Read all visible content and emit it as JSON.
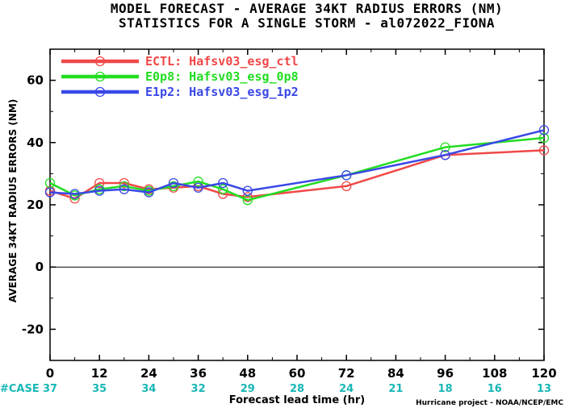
{
  "title": "MODEL FORECAST - AVERAGE 34KT RADIUS ERRORS (NM)",
  "subtitle": "STATISTICS FOR A SINGLE STORM - al072022_FIONA",
  "credit": "Hurricane project - NOAA/NCEP/EMC",
  "case_row": {
    "label": "#CASE",
    "counts": [
      "37",
      "35",
      "34",
      "32",
      "29",
      "28",
      "24",
      "21",
      "18",
      "16",
      "13"
    ]
  },
  "chart_data": {
    "type": "line",
    "xlabel": "Forecast lead time (hr)",
    "ylabel": "AVERAGE 34KT RADIUS ERRORS (NM)",
    "xlim": [
      0,
      120
    ],
    "ylim": [
      -30,
      70
    ],
    "x_ticks": [
      0,
      12,
      24,
      36,
      48,
      60,
      72,
      84,
      96,
      108,
      120
    ],
    "y_ticks": [
      -20,
      0,
      20,
      40,
      60
    ],
    "zero_line": true,
    "legend_position": "top-left",
    "series": [
      {
        "name": "ECTL: Hafsv03_esg_ctl",
        "color": "#f04848",
        "x": [
          0,
          6,
          12,
          18,
          24,
          30,
          36,
          42,
          48,
          72,
          96,
          120
        ],
        "y": [
          24.5,
          22,
          27,
          27,
          25,
          25.5,
          26,
          23.5,
          22.5,
          26,
          36,
          37.5
        ]
      },
      {
        "name": "E0p8: Hafsv03_esg_0p8",
        "color": "#22dd22",
        "x": [
          0,
          6,
          12,
          18,
          24,
          30,
          36,
          42,
          48,
          72,
          96,
          120
        ],
        "y": [
          27,
          23,
          25,
          26,
          24.5,
          26,
          27.5,
          25,
          21.5,
          29.5,
          38.5,
          41.5
        ]
      },
      {
        "name": "E1p2: Hafsv03_esg_1p2",
        "color": "#3a48e6",
        "x": [
          0,
          6,
          12,
          18,
          24,
          30,
          36,
          42,
          48,
          72,
          96,
          120
        ],
        "y": [
          24,
          23.5,
          24.5,
          25,
          24,
          27,
          25.5,
          27,
          24.5,
          29.5,
          36,
          44
        ]
      }
    ]
  }
}
